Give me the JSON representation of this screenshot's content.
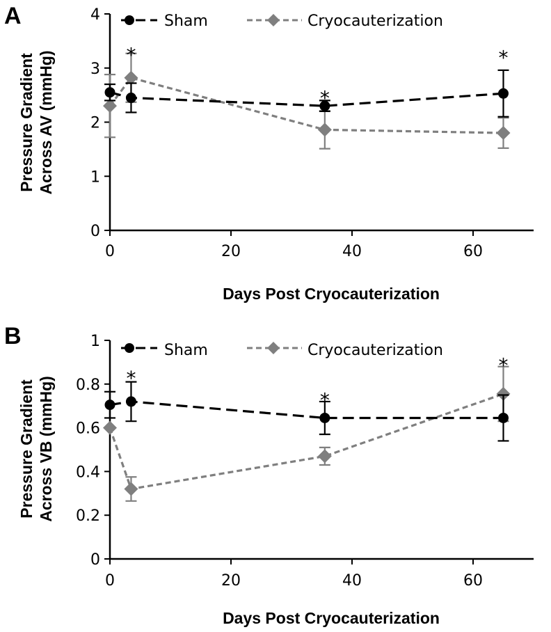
{
  "chart_data": [
    {
      "type": "line",
      "panel_label": "A",
      "xlabel": "Days Post Cryocauterization",
      "ylabel_lines": [
        "Pressure Gradient",
        "Across  AV (mmHg)"
      ],
      "xlim": [
        0,
        70
      ],
      "ylim": [
        0,
        4
      ],
      "xticks": [
        0,
        20,
        40,
        60
      ],
      "yticks": [
        0,
        1,
        2,
        3,
        4
      ],
      "ytick_labels": [
        "0",
        "1",
        "2",
        "3",
        "4"
      ],
      "legend": [
        "Sham",
        "Cryocauterization"
      ],
      "series": [
        {
          "name": "Sham",
          "color": "#000000",
          "marker": "circle",
          "x": [
            0,
            3.5,
            35.5,
            65
          ],
          "y": [
            2.55,
            2.45,
            2.3,
            2.53
          ],
          "err": [
            0.15,
            0.27,
            0.1,
            0.43
          ]
        },
        {
          "name": "Cryocauterization",
          "color": "#7f7f7f",
          "marker": "diamond",
          "x": [
            0,
            3.5,
            35.5,
            65
          ],
          "y": [
            2.3,
            2.82,
            1.86,
            1.8
          ],
          "err": [
            0.58,
            0.45,
            0.35,
            0.28
          ]
        }
      ],
      "annotations": [
        {
          "x": 3.5,
          "y": 3.3,
          "text": "*"
        },
        {
          "x": 35.5,
          "y": 2.5,
          "text": "*"
        },
        {
          "x": 65,
          "y": 3.25,
          "text": "*"
        }
      ]
    },
    {
      "type": "line",
      "panel_label": "B",
      "xlabel": "Days Post Cryocauterization",
      "ylabel_lines": [
        "Pressure Gradient",
        "Across VB (mmHg)"
      ],
      "xlim": [
        0,
        70
      ],
      "ylim": [
        0,
        1
      ],
      "xticks": [
        0,
        20,
        40,
        60
      ],
      "yticks": [
        0,
        0.2,
        0.4,
        0.6,
        0.8,
        1
      ],
      "ytick_labels": [
        "0",
        "0.2",
        "0.4",
        "0.6",
        "0.8",
        "1"
      ],
      "legend": [
        "Sham",
        "Cryocauterization"
      ],
      "series": [
        {
          "name": "Sham",
          "color": "#000000",
          "marker": "circle",
          "x": [
            0,
            3.5,
            35.5,
            65
          ],
          "y": [
            0.705,
            0.72,
            0.645,
            0.645
          ],
          "err": [
            0.06,
            0.09,
            0.075,
            0.105
          ]
        },
        {
          "name": "Cryocauterization",
          "color": "#7f7f7f",
          "marker": "diamond",
          "x": [
            0,
            3.5,
            35.5,
            65
          ],
          "y": [
            0.6,
            0.32,
            0.47,
            0.755
          ],
          "err": [
            0.0,
            0.055,
            0.04,
            0.125
          ]
        }
      ],
      "annotations": [
        {
          "x": 3.5,
          "y": 0.84,
          "text": "*"
        },
        {
          "x": 35.5,
          "y": 0.74,
          "text": "*"
        },
        {
          "x": 65,
          "y": 0.9,
          "text": "*"
        }
      ]
    }
  ]
}
